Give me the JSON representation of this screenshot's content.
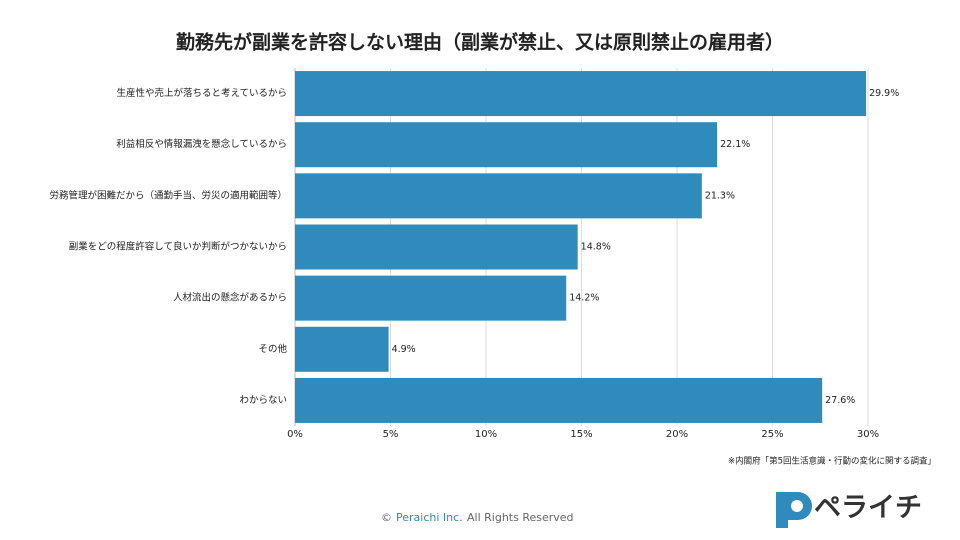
{
  "chart_data": {
    "type": "hbar",
    "title": "勤務先が副業を許容しない理由（副業が禁止、又は原則禁止の雇用者）",
    "categories": [
      "生産性や売上が落ちると考えているから",
      "利益相反や情報漏洩を懸念しているから",
      "労務管理が困難だから（通勤手当、労災の適用範囲等）",
      "副業をどの程度許容して良いか判断がつかないから",
      "人材流出の懸念があるから",
      "その他",
      "わからない"
    ],
    "values": [
      29.9,
      22.1,
      21.3,
      14.8,
      14.2,
      4.9,
      27.6
    ],
    "value_labels": [
      "29.9%",
      "22.1%",
      "21.3%",
      "14.8%",
      "14.2%",
      "4.9%",
      "27.6%"
    ],
    "color": "#2e8bbb",
    "xlim": [
      0,
      30
    ],
    "xticks": [
      {
        "value": 0,
        "label": "0%"
      },
      {
        "value": 5,
        "label": "5%"
      },
      {
        "value": 10,
        "label": "10%"
      },
      {
        "value": 15,
        "label": "15%"
      },
      {
        "value": 20,
        "label": "20%"
      },
      {
        "value": 25,
        "label": "25%"
      },
      {
        "value": 30,
        "label": "30%"
      }
    ],
    "grid": true,
    "source": "※内閣府「第5回生活意識・行動の変化に関する調査」"
  },
  "footer": {
    "symbol": "©",
    "company": "Peraichi Inc.",
    "rights": "All Rights Reserved"
  },
  "logo": "ペライチ"
}
